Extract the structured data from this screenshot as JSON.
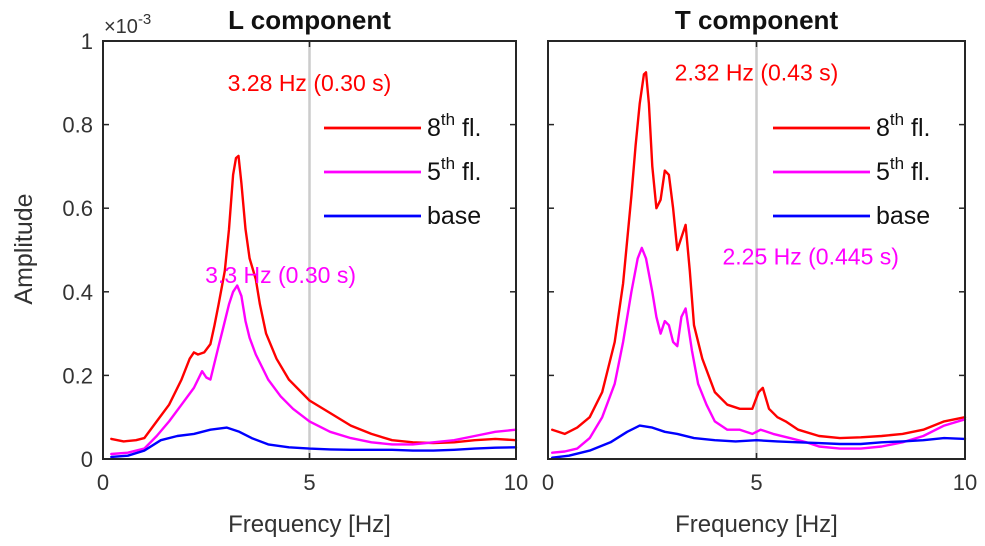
{
  "figure": {
    "ylabel": "Amplitude",
    "xlabel": "Frequency [Hz]",
    "y_exponent_base": "×10",
    "y_exponent_power": "-3"
  },
  "chart_data": [
    {
      "type": "line",
      "title": "L component",
      "xlabel": "Frequency [Hz]",
      "ylabel": "Amplitude",
      "xlim": [
        0,
        10
      ],
      "ylim": [
        0,
        1
      ],
      "y_scale_factor": 0.001,
      "x_ticks": [
        0,
        5,
        10
      ],
      "x_tick_labels": [
        "0",
        "5",
        "10"
      ],
      "y_ticks": [
        0,
        0.2,
        0.4,
        0.6,
        0.8,
        1
      ],
      "y_tick_labels": [
        "0",
        "0.2",
        "0.4",
        "0.6",
        "0.8",
        "1"
      ],
      "grid": false,
      "legend_position": "top-right",
      "legend": [
        {
          "label_base": "8",
          "label_sup": "th",
          "label_rest": " fl.",
          "color": "#ff0000"
        },
        {
          "label_base": "5",
          "label_sup": "th",
          "label_rest": " fl.",
          "color": "#ff00ff"
        },
        {
          "label_base": "base",
          "label_sup": "",
          "label_rest": "",
          "color": "#0000ff"
        }
      ],
      "reference_line": {
        "x": 5,
        "color": "#cccccc"
      },
      "annotations": [
        {
          "text": "3.28 Hz (0.30 s)",
          "color": "#ff0000",
          "x": 5,
          "y": 0.9
        },
        {
          "text": "3.3 Hz (0.30 s)",
          "color": "#ff00ff",
          "x": 4.3,
          "y": 0.44
        }
      ],
      "series": [
        {
          "name": "8th fl.",
          "color": "#ff0000",
          "x": [
            0.2,
            0.5,
            0.8,
            1.0,
            1.3,
            1.6,
            1.9,
            2.1,
            2.2,
            2.3,
            2.45,
            2.6,
            2.7,
            2.8,
            2.95,
            3.05,
            3.15,
            3.22,
            3.28,
            3.35,
            3.45,
            3.55,
            3.7,
            3.8,
            3.95,
            4.2,
            4.5,
            5.0,
            5.5,
            6.0,
            6.5,
            7.0,
            7.5,
            8.0,
            8.5,
            9.0,
            9.5,
            10.0
          ],
          "y": [
            0.048,
            0.042,
            0.045,
            0.05,
            0.09,
            0.13,
            0.19,
            0.24,
            0.255,
            0.25,
            0.255,
            0.275,
            0.32,
            0.37,
            0.45,
            0.55,
            0.68,
            0.72,
            0.725,
            0.66,
            0.55,
            0.48,
            0.43,
            0.37,
            0.3,
            0.24,
            0.19,
            0.14,
            0.11,
            0.08,
            0.06,
            0.045,
            0.04,
            0.038,
            0.04,
            0.045,
            0.048,
            0.045
          ]
        },
        {
          "name": "5th fl.",
          "color": "#ff00ff",
          "x": [
            0.2,
            0.6,
            1.0,
            1.3,
            1.6,
            1.9,
            2.2,
            2.4,
            2.5,
            2.6,
            2.7,
            2.8,
            2.9,
            3.05,
            3.15,
            3.25,
            3.35,
            3.45,
            3.55,
            3.7,
            3.85,
            4.0,
            4.3,
            4.6,
            5.0,
            5.5,
            6.0,
            6.5,
            7.0,
            7.5,
            8.0,
            8.5,
            9.0,
            9.5,
            10.0
          ],
          "y": [
            0.012,
            0.015,
            0.025,
            0.055,
            0.09,
            0.13,
            0.17,
            0.21,
            0.195,
            0.19,
            0.23,
            0.27,
            0.31,
            0.37,
            0.4,
            0.415,
            0.39,
            0.33,
            0.29,
            0.25,
            0.22,
            0.19,
            0.15,
            0.12,
            0.09,
            0.065,
            0.05,
            0.04,
            0.035,
            0.035,
            0.04,
            0.045,
            0.055,
            0.065,
            0.07
          ]
        },
        {
          "name": "base",
          "color": "#0000ff",
          "x": [
            0.2,
            0.6,
            1.0,
            1.4,
            1.8,
            2.2,
            2.6,
            3.0,
            3.3,
            3.6,
            4.0,
            4.5,
            5.0,
            5.5,
            6.0,
            6.5,
            7.0,
            7.5,
            8.0,
            8.5,
            9.0,
            9.5,
            10.0
          ],
          "y": [
            0.005,
            0.008,
            0.02,
            0.045,
            0.055,
            0.06,
            0.07,
            0.075,
            0.065,
            0.05,
            0.035,
            0.028,
            0.025,
            0.023,
            0.022,
            0.022,
            0.022,
            0.02,
            0.02,
            0.022,
            0.025,
            0.027,
            0.028
          ]
        }
      ]
    },
    {
      "type": "line",
      "title": "T component",
      "xlabel": "Frequency [Hz]",
      "ylabel": "",
      "xlim": [
        0,
        10
      ],
      "ylim": [
        0,
        1
      ],
      "y_scale_factor": 0.001,
      "x_ticks": [
        0,
        5,
        10
      ],
      "x_tick_labels": [
        "0",
        "5",
        "10"
      ],
      "y_ticks": [
        0,
        0.2,
        0.4,
        0.6,
        0.8,
        1
      ],
      "y_tick_labels": [],
      "grid": false,
      "legend_position": "top-right",
      "legend": [
        {
          "label_base": "8",
          "label_sup": "th",
          "label_rest": " fl.",
          "color": "#ff0000"
        },
        {
          "label_base": "5",
          "label_sup": "th",
          "label_rest": " fl.",
          "color": "#ff00ff"
        },
        {
          "label_base": "base",
          "label_sup": "",
          "label_rest": "",
          "color": "#0000ff"
        }
      ],
      "reference_line": {
        "x": 5,
        "color": "#cccccc"
      },
      "annotations": [
        {
          "text": "2.32 Hz (0.43 s)",
          "color": "#ff0000",
          "x": 5,
          "y": 0.925
        },
        {
          "text": "2.25 Hz (0.445 s)",
          "color": "#ff00ff",
          "x": 6.3,
          "y": 0.485
        }
      ],
      "series": [
        {
          "name": "8th fl.",
          "color": "#ff0000",
          "x": [
            0.1,
            0.4,
            0.7,
            1.0,
            1.3,
            1.6,
            1.8,
            2.0,
            2.1,
            2.2,
            2.3,
            2.35,
            2.42,
            2.5,
            2.6,
            2.7,
            2.8,
            2.9,
            3.0,
            3.1,
            3.2,
            3.3,
            3.4,
            3.5,
            3.7,
            4.0,
            4.3,
            4.6,
            4.9,
            5.05,
            5.15,
            5.3,
            5.5,
            5.7,
            6.0,
            6.5,
            7.0,
            7.5,
            8.0,
            8.5,
            9.0,
            9.5,
            10.0
          ],
          "y": [
            0.07,
            0.06,
            0.075,
            0.1,
            0.16,
            0.28,
            0.42,
            0.63,
            0.75,
            0.85,
            0.92,
            0.925,
            0.85,
            0.7,
            0.6,
            0.62,
            0.69,
            0.68,
            0.6,
            0.5,
            0.53,
            0.56,
            0.45,
            0.32,
            0.24,
            0.16,
            0.13,
            0.12,
            0.12,
            0.16,
            0.17,
            0.12,
            0.1,
            0.09,
            0.07,
            0.055,
            0.05,
            0.052,
            0.055,
            0.06,
            0.07,
            0.09,
            0.1
          ]
        },
        {
          "name": "5th fl.",
          "color": "#ff00ff",
          "x": [
            0.1,
            0.4,
            0.7,
            1.0,
            1.3,
            1.6,
            1.8,
            2.0,
            2.15,
            2.25,
            2.35,
            2.5,
            2.6,
            2.7,
            2.8,
            2.9,
            3.0,
            3.1,
            3.2,
            3.3,
            3.45,
            3.6,
            3.8,
            4.0,
            4.3,
            4.6,
            4.9,
            5.1,
            5.4,
            5.8,
            6.2,
            6.5,
            7.0,
            7.5,
            8.0,
            8.5,
            9.0,
            9.5,
            10.0
          ],
          "y": [
            0.015,
            0.018,
            0.025,
            0.05,
            0.1,
            0.18,
            0.28,
            0.4,
            0.48,
            0.505,
            0.48,
            0.4,
            0.34,
            0.3,
            0.33,
            0.32,
            0.28,
            0.27,
            0.34,
            0.36,
            0.26,
            0.18,
            0.13,
            0.09,
            0.07,
            0.07,
            0.06,
            0.07,
            0.06,
            0.05,
            0.04,
            0.03,
            0.025,
            0.025,
            0.03,
            0.04,
            0.055,
            0.08,
            0.095
          ]
        },
        {
          "name": "base",
          "color": "#0000ff",
          "x": [
            0.1,
            0.5,
            1.0,
            1.5,
            1.9,
            2.2,
            2.5,
            2.8,
            3.1,
            3.5,
            4.0,
            4.5,
            5.0,
            5.5,
            6.0,
            6.5,
            7.0,
            7.5,
            8.0,
            8.5,
            9.0,
            9.5,
            10.0
          ],
          "y": [
            0.003,
            0.008,
            0.02,
            0.04,
            0.065,
            0.08,
            0.075,
            0.065,
            0.06,
            0.05,
            0.045,
            0.042,
            0.045,
            0.042,
            0.04,
            0.038,
            0.036,
            0.036,
            0.04,
            0.042,
            0.045,
            0.05,
            0.048
          ]
        }
      ]
    }
  ]
}
